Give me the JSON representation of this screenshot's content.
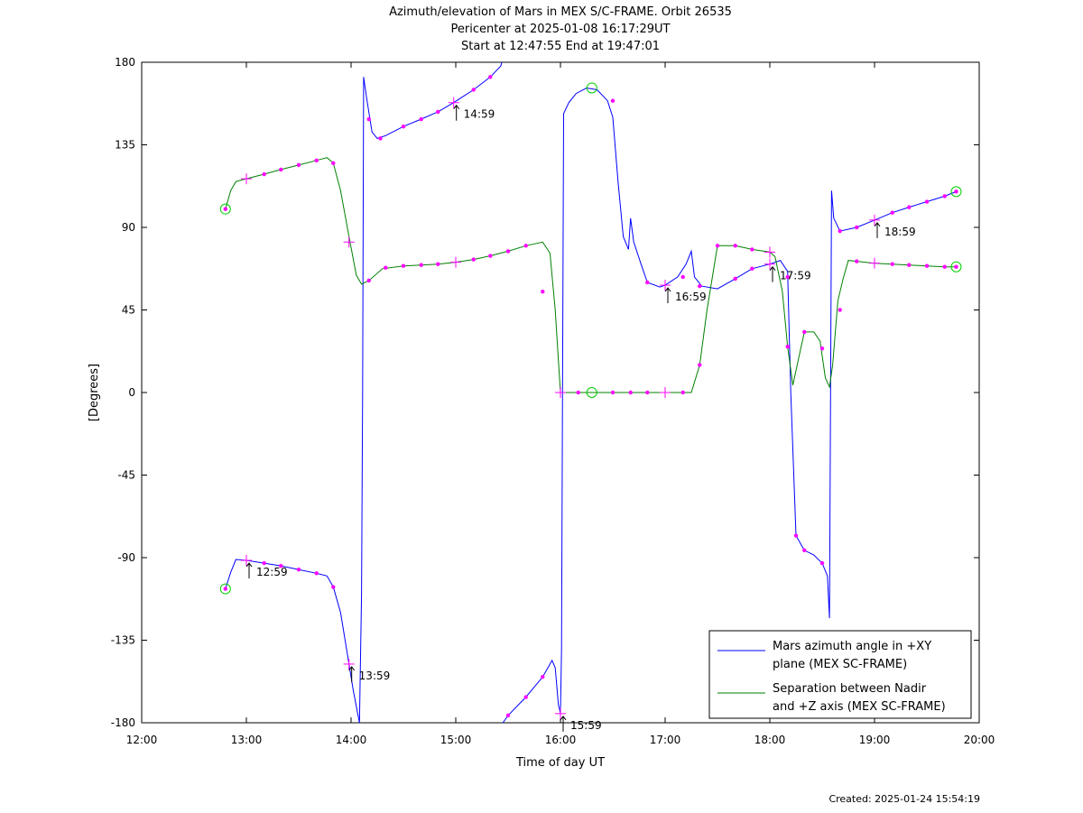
{
  "chart_data": {
    "type": "line",
    "title": [
      "Azimuth/elevation of Mars in MEX S/C-FRAME.  Orbit 26535",
      "Pericenter at 2025-01-08 16:17:29UT",
      "Start at 12:47:55 End at 19:47:01"
    ],
    "xlabel": "Time of day UT",
    "ylabel": "[Degrees]",
    "xlim": [
      12.0,
      20.0
    ],
    "ylim": [
      -180,
      180
    ],
    "xticks": [
      12,
      13,
      14,
      15,
      16,
      17,
      18,
      19,
      20
    ],
    "xtick_labels": [
      "12:00",
      "13:00",
      "14:00",
      "15:00",
      "16:00",
      "17:00",
      "18:00",
      "19:00",
      "20:00"
    ],
    "yticks": [
      180,
      135,
      90,
      45,
      0,
      -45,
      -90,
      -135,
      -180
    ],
    "ytick_labels": [
      "180",
      "135",
      "90",
      "45",
      "0",
      "-45",
      "-90",
      "-135",
      "-180"
    ],
    "grid": false,
    "legend_position": "bottom-right",
    "legend_entries": [
      {
        "lines": [
          "Mars azimuth angle in +XY",
          "plane (MEX SC-FRAME)"
        ],
        "color": "#0000ff"
      },
      {
        "lines": [
          "Separation between Nadir",
          "and +Z axis (MEX SC-FRAME)"
        ],
        "color": "#008000"
      }
    ],
    "series": [
      {
        "color": "#0000ff",
        "segments": [
          [
            [
              12.8,
              -107
            ],
            [
              12.85,
              -98
            ],
            [
              12.9,
              -91
            ],
            [
              13.0,
              -91.5
            ],
            [
              13.17,
              -93
            ],
            [
              13.33,
              -94.5
            ],
            [
              13.5,
              -96.5
            ],
            [
              13.67,
              -98.5
            ],
            [
              13.77,
              -100
            ],
            [
              13.83,
              -106
            ],
            [
              13.9,
              -120
            ],
            [
              13.98,
              -148
            ],
            [
              14.02,
              -162
            ],
            [
              14.08,
              -180
            ]
          ],
          [
            [
              14.08,
              -180
            ],
            [
              14.1,
              -110
            ],
            [
              14.11,
              0
            ],
            [
              14.12,
              172
            ],
            [
              14.15,
              160
            ],
            [
              14.2,
              142
            ],
            [
              14.25,
              138.5
            ],
            [
              14.33,
              140
            ],
            [
              14.5,
              145
            ],
            [
              14.67,
              149
            ],
            [
              14.83,
              153
            ],
            [
              14.98,
              158
            ],
            [
              15.17,
              165
            ],
            [
              15.33,
              172
            ],
            [
              15.43,
              178
            ],
            [
              15.44,
              180
            ]
          ],
          [
            [
              15.45,
              -180
            ],
            [
              15.5,
              -176
            ],
            [
              15.67,
              -166
            ],
            [
              15.83,
              -155
            ],
            [
              15.92,
              -146
            ],
            [
              15.95,
              -150
            ],
            [
              15.98,
              -170
            ],
            [
              16.0,
              -175
            ],
            [
              16.01,
              -140
            ],
            [
              16.02,
              0
            ],
            [
              16.03,
              152
            ],
            [
              16.08,
              158
            ],
            [
              16.15,
              163
            ],
            [
              16.25,
              166
            ],
            [
              16.35,
              165
            ],
            [
              16.45,
              159
            ],
            [
              16.5,
              150
            ],
            [
              16.55,
              115
            ],
            [
              16.6,
              85
            ],
            [
              16.65,
              78
            ],
            [
              16.67,
              95
            ],
            [
              16.7,
              82
            ],
            [
              16.77,
              70
            ],
            [
              16.83,
              60
            ],
            [
              16.95,
              57.5
            ],
            [
              17.0,
              58.5
            ],
            [
              17.12,
              63
            ],
            [
              17.2,
              70
            ],
            [
              17.25,
              77
            ],
            [
              17.28,
              63
            ],
            [
              17.35,
              58
            ],
            [
              17.5,
              56.5
            ],
            [
              17.67,
              62
            ],
            [
              17.83,
              67.5
            ],
            [
              18.0,
              70
            ],
            [
              18.1,
              72
            ],
            [
              18.17,
              66
            ],
            [
              18.2,
              0
            ],
            [
              18.25,
              -78
            ],
            [
              18.33,
              -86
            ],
            [
              18.42,
              -88.5
            ],
            [
              18.5,
              -93
            ],
            [
              18.55,
              -100
            ],
            [
              18.57,
              -123
            ],
            [
              18.58,
              0
            ],
            [
              18.59,
              110
            ],
            [
              18.61,
              95
            ],
            [
              18.67,
              88
            ],
            [
              18.83,
              90
            ],
            [
              19.0,
              94
            ],
            [
              19.17,
              98
            ],
            [
              19.33,
              101
            ],
            [
              19.5,
              104
            ],
            [
              19.67,
              107
            ],
            [
              19.78,
              109.5
            ]
          ]
        ]
      },
      {
        "color": "#008000",
        "segments": [
          [
            [
              12.8,
              100
            ],
            [
              12.85,
              110
            ],
            [
              12.9,
              115
            ],
            [
              13.0,
              116.5
            ],
            [
              13.17,
              119
            ],
            [
              13.33,
              121.5
            ],
            [
              13.5,
              124
            ],
            [
              13.67,
              126.5
            ],
            [
              13.77,
              128
            ],
            [
              13.83,
              125
            ],
            [
              13.9,
              110
            ],
            [
              13.98,
              85
            ],
            [
              14.05,
              64
            ],
            [
              14.1,
              59
            ],
            [
              14.17,
              61
            ],
            [
              14.3,
              67.5
            ],
            [
              14.5,
              69
            ],
            [
              14.67,
              69.5
            ],
            [
              14.83,
              70
            ],
            [
              15.0,
              71
            ],
            [
              15.17,
              72.5
            ],
            [
              15.33,
              74.5
            ],
            [
              15.5,
              77
            ],
            [
              15.67,
              80
            ],
            [
              15.83,
              82
            ],
            [
              15.9,
              76
            ],
            [
              15.95,
              45
            ],
            [
              16.0,
              0
            ],
            [
              16.17,
              0
            ],
            [
              16.33,
              0
            ],
            [
              16.5,
              0
            ],
            [
              16.67,
              0
            ],
            [
              16.83,
              0
            ],
            [
              17.0,
              0
            ],
            [
              17.17,
              0
            ],
            [
              17.25,
              0
            ],
            [
              17.33,
              15
            ],
            [
              17.4,
              45
            ],
            [
              17.5,
              80
            ],
            [
              17.67,
              80
            ],
            [
              17.83,
              78
            ],
            [
              18.0,
              76.5
            ],
            [
              18.05,
              74
            ],
            [
              18.12,
              55
            ],
            [
              18.17,
              25
            ],
            [
              18.22,
              4
            ],
            [
              18.28,
              20
            ],
            [
              18.33,
              33
            ],
            [
              18.42,
              33
            ],
            [
              18.48,
              28
            ],
            [
              18.53,
              8
            ],
            [
              18.57,
              3
            ],
            [
              18.6,
              15
            ],
            [
              18.65,
              50
            ],
            [
              18.7,
              62
            ],
            [
              18.75,
              72
            ],
            [
              18.83,
              71.5
            ],
            [
              19.0,
              70.5
            ],
            [
              19.17,
              70
            ],
            [
              19.33,
              69.5
            ],
            [
              19.5,
              69
            ],
            [
              19.67,
              68.5
            ],
            [
              19.78,
              68.5
            ]
          ]
        ]
      }
    ],
    "markers": {
      "color": "#ff00ff",
      "dots": [
        [
          12.8,
          -107
        ],
        [
          13.17,
          -93
        ],
        [
          13.33,
          -94.5
        ],
        [
          13.5,
          -96.5
        ],
        [
          13.67,
          -98.5
        ],
        [
          13.83,
          -106
        ],
        [
          14.17,
          149
        ],
        [
          14.28,
          138.5
        ],
        [
          14.5,
          145
        ],
        [
          14.67,
          149
        ],
        [
          14.83,
          153
        ],
        [
          15.17,
          165
        ],
        [
          15.33,
          172
        ],
        [
          15.5,
          -176
        ],
        [
          15.67,
          -166
        ],
        [
          15.83,
          -155
        ],
        [
          16.5,
          159
        ],
        [
          16.83,
          60
        ],
        [
          17.17,
          63
        ],
        [
          17.33,
          58
        ],
        [
          17.67,
          62
        ],
        [
          17.83,
          67.5
        ],
        [
          18.17,
          63
        ],
        [
          18.25,
          -78
        ],
        [
          18.33,
          -86
        ],
        [
          18.5,
          -93
        ],
        [
          18.67,
          88
        ],
        [
          18.83,
          90
        ],
        [
          19.17,
          98
        ],
        [
          19.33,
          101
        ],
        [
          19.5,
          104
        ],
        [
          19.67,
          107
        ],
        [
          19.78,
          109.5
        ],
        [
          12.8,
          100
        ],
        [
          13.17,
          119
        ],
        [
          13.33,
          121.5
        ],
        [
          13.5,
          124
        ],
        [
          13.67,
          126.5
        ],
        [
          13.83,
          125
        ],
        [
          14.17,
          61
        ],
        [
          14.33,
          68
        ],
        [
          14.5,
          69
        ],
        [
          14.67,
          69.5
        ],
        [
          14.83,
          70
        ],
        [
          15.17,
          72.5
        ],
        [
          15.33,
          74.5
        ],
        [
          15.5,
          77
        ],
        [
          15.67,
          80
        ],
        [
          15.83,
          55
        ],
        [
          16.17,
          0
        ],
        [
          16.5,
          0
        ],
        [
          16.67,
          0
        ],
        [
          16.83,
          0
        ],
        [
          17.17,
          0
        ],
        [
          17.33,
          15
        ],
        [
          17.5,
          80
        ],
        [
          17.67,
          80
        ],
        [
          17.83,
          78
        ],
        [
          18.17,
          25
        ],
        [
          18.33,
          33
        ],
        [
          18.5,
          24
        ],
        [
          18.67,
          45
        ],
        [
          18.83,
          71.5
        ],
        [
          19.17,
          70
        ],
        [
          19.33,
          69.5
        ],
        [
          19.5,
          69
        ],
        [
          19.67,
          68.5
        ],
        [
          19.78,
          68.5
        ]
      ],
      "crosses": [
        [
          13.0,
          -91.5
        ],
        [
          13.98,
          -148
        ],
        [
          14.98,
          158
        ],
        [
          16.0,
          -175
        ],
        [
          17.0,
          58.5
        ],
        [
          18.0,
          70
        ],
        [
          19.0,
          94
        ],
        [
          13.0,
          116.5
        ],
        [
          13.98,
          82
        ],
        [
          15.0,
          71
        ],
        [
          16.0,
          0
        ],
        [
          17.0,
          0
        ],
        [
          18.0,
          76.5
        ],
        [
          19.0,
          70.5
        ]
      ],
      "circles": [
        [
          12.8,
          -107
        ],
        [
          12.8,
          100
        ],
        [
          16.3,
          166
        ],
        [
          16.3,
          0
        ],
        [
          19.78,
          109.5
        ],
        [
          19.78,
          68.5
        ]
      ],
      "circle_color": "#00cc00"
    },
    "annotations": [
      {
        "x": 13.0,
        "y": -91.5,
        "label": "12:59"
      },
      {
        "x": 13.98,
        "y": -148,
        "label": "13:59"
      },
      {
        "x": 14.98,
        "y": 158,
        "label": "14:59"
      },
      {
        "x": 16.0,
        "y": -175,
        "label": "15:59"
      },
      {
        "x": 17.0,
        "y": 58.5,
        "label": "16:59"
      },
      {
        "x": 18.0,
        "y": 70,
        "label": "17:59"
      },
      {
        "x": 19.0,
        "y": 94,
        "label": "18:59"
      }
    ]
  },
  "footer": {
    "created": "Created: 2025-01-24 15:54:19"
  }
}
